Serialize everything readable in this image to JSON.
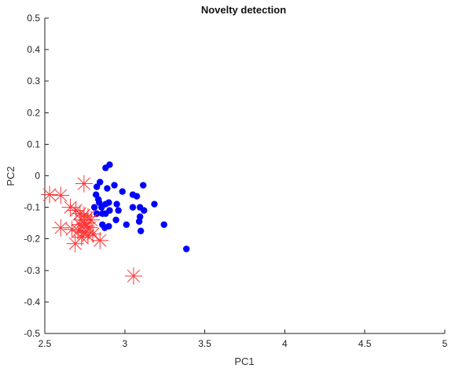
{
  "chart_data": {
    "type": "scatter",
    "title": "Novelty detection",
    "xlabel": "PC1",
    "ylabel": "PC2",
    "xlim": [
      2.5,
      5
    ],
    "ylim": [
      -0.5,
      0.5
    ],
    "xticks": [
      "2.5",
      "3",
      "3.5",
      "4",
      "4.5",
      "5"
    ],
    "yticks": [
      "0.5",
      "0.4",
      "0.3",
      "0.2",
      "0.1",
      "0",
      "-0.1",
      "-0.2",
      "-0.3",
      "-0.4",
      "-0.5"
    ],
    "grid": false,
    "legend": "none",
    "series": [
      {
        "marker": "filled-circle",
        "color": "#0000ff",
        "points": [
          [
            2.88,
            0.025
          ],
          [
            2.905,
            0.035
          ],
          [
            2.825,
            -0.035
          ],
          [
            2.845,
            -0.02
          ],
          [
            2.89,
            -0.04
          ],
          [
            2.935,
            -0.03
          ],
          [
            2.985,
            -0.05
          ],
          [
            3.05,
            -0.06
          ],
          [
            3.075,
            -0.065
          ],
          [
            3.115,
            -0.03
          ],
          [
            2.82,
            -0.06
          ],
          [
            2.835,
            -0.075
          ],
          [
            2.84,
            -0.085
          ],
          [
            2.81,
            -0.1
          ],
          [
            2.855,
            -0.1
          ],
          [
            2.88,
            -0.09
          ],
          [
            2.9,
            -0.085
          ],
          [
            2.905,
            -0.11
          ],
          [
            2.86,
            -0.12
          ],
          [
            2.88,
            -0.12
          ],
          [
            2.825,
            -0.12
          ],
          [
            2.95,
            -0.09
          ],
          [
            2.96,
            -0.11
          ],
          [
            3.05,
            -0.1
          ],
          [
            3.095,
            -0.1
          ],
          [
            3.12,
            -0.11
          ],
          [
            3.185,
            -0.09
          ],
          [
            3.095,
            -0.13
          ],
          [
            2.945,
            -0.14
          ],
          [
            3.09,
            -0.145
          ],
          [
            3.01,
            -0.155
          ],
          [
            2.86,
            -0.155
          ],
          [
            2.875,
            -0.165
          ],
          [
            2.9,
            -0.16
          ],
          [
            3.1,
            -0.175
          ],
          [
            3.245,
            -0.155
          ],
          [
            3.385,
            -0.232
          ]
        ]
      },
      {
        "marker": "asterisk",
        "color": "#ff3333",
        "points": [
          [
            2.745,
            -0.025
          ],
          [
            2.53,
            -0.06
          ],
          [
            2.6,
            -0.062
          ],
          [
            2.66,
            -0.1
          ],
          [
            2.695,
            -0.11
          ],
          [
            2.72,
            -0.12
          ],
          [
            2.745,
            -0.125
          ],
          [
            2.77,
            -0.13
          ],
          [
            2.79,
            -0.14
          ],
          [
            2.73,
            -0.14
          ],
          [
            2.75,
            -0.15
          ],
          [
            2.72,
            -0.155
          ],
          [
            2.76,
            -0.16
          ],
          [
            2.78,
            -0.165
          ],
          [
            2.6,
            -0.165
          ],
          [
            2.67,
            -0.17
          ],
          [
            2.71,
            -0.175
          ],
          [
            2.74,
            -0.18
          ],
          [
            2.77,
            -0.19
          ],
          [
            2.8,
            -0.185
          ],
          [
            2.73,
            -0.195
          ],
          [
            2.845,
            -0.205
          ],
          [
            2.69,
            -0.215
          ],
          [
            3.055,
            -0.318
          ]
        ]
      }
    ]
  }
}
